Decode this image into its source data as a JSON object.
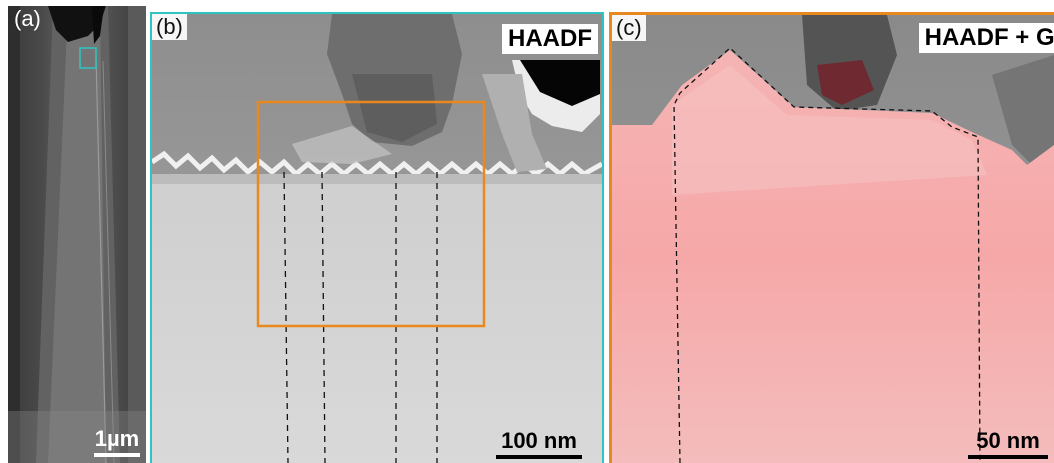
{
  "panels": {
    "a": {
      "label": "(a)",
      "scalebar": "1µm",
      "frame_color": "#2ec4c4"
    },
    "b": {
      "label": "(b)",
      "modality": "HAADF",
      "scalebar": "100 nm",
      "frame_color": "#2ec4c4",
      "roi_color": "#e8891f"
    },
    "c": {
      "label": "(c)",
      "modality": "HAADF + Ga",
      "scalebar": "50 nm",
      "frame_color": "#e8891f",
      "overlay_color": "#ff8c8c"
    }
  }
}
